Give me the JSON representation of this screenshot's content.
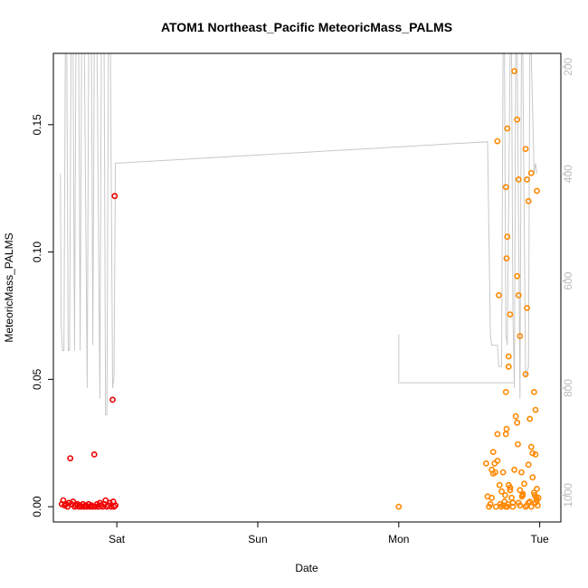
{
  "chart_data": {
    "type": "scatter",
    "title": "ATOM1 Northeast_Pacific MeteoricMass_PALMS",
    "xlabel": "Date",
    "ylabel": "MeteoricMass_PALMS",
    "x_ticks": [
      "Sat",
      "Sun",
      "Mon",
      "Tue"
    ],
    "y_ticks": [
      "0.00",
      "0.05",
      "0.10",
      "0.15"
    ],
    "y_right_ticks": [
      "200",
      "400",
      "600",
      "800",
      "1000"
    ],
    "xlim_days": [
      -0.45,
      3.15
    ],
    "ylim": [
      -0.006,
      0.178
    ],
    "y_right_lim": [
      1050,
      175
    ],
    "grid": false,
    "colors": {
      "series1": "#ee0000",
      "series2": "#ff8800",
      "pressure": "#c8c8c8",
      "axis": "#000000",
      "right_axis": "#bbbbbb"
    },
    "series": [
      {
        "color": "#ee0000",
        "points": [
          [
            -0.39,
            0.001
          ],
          [
            -0.38,
            0.0025
          ],
          [
            -0.37,
            0.0005
          ],
          [
            -0.36,
            0.001
          ],
          [
            -0.35,
            0.0
          ],
          [
            -0.34,
            0.0015
          ],
          [
            -0.33,
            0.019
          ],
          [
            -0.32,
            0.001
          ],
          [
            -0.31,
            0.002
          ],
          [
            -0.3,
            0.0
          ],
          [
            -0.29,
            0.0005
          ],
          [
            -0.28,
            0.001
          ],
          [
            -0.27,
            0.0
          ],
          [
            -0.26,
            0.0005
          ],
          [
            -0.25,
            0.0
          ],
          [
            -0.24,
            0.001
          ],
          [
            -0.23,
            0.0
          ],
          [
            -0.22,
            0.0005
          ],
          [
            -0.21,
            0.0
          ],
          [
            -0.2,
            0.001
          ],
          [
            -0.19,
            0.0
          ],
          [
            -0.18,
            0.0005
          ],
          [
            -0.17,
            0.0
          ],
          [
            -0.16,
            0.0205
          ],
          [
            -0.15,
            0.0
          ],
          [
            -0.14,
            0.001
          ],
          [
            -0.13,
            0.0
          ],
          [
            -0.12,
            0.0015
          ],
          [
            -0.11,
            0.0005
          ],
          [
            -0.1,
            0.0
          ],
          [
            -0.09,
            0.001
          ],
          [
            -0.08,
            0.0025
          ],
          [
            -0.07,
            0.0
          ],
          [
            -0.06,
            0.0005
          ],
          [
            -0.05,
            0.0015
          ],
          [
            -0.04,
            0.0
          ],
          [
            -0.03,
            0.042
          ],
          [
            -0.025,
            0.002
          ],
          [
            -0.02,
            0.0
          ],
          [
            -0.015,
            0.122
          ],
          [
            -0.01,
            0.0005
          ]
        ]
      },
      {
        "color": "#ff8800",
        "points": [
          [
            2.0,
            0.0
          ],
          [
            2.62,
            0.017
          ],
          [
            2.63,
            0.004
          ],
          [
            2.64,
            0.0
          ],
          [
            2.65,
            0.001
          ],
          [
            2.66,
            0.0035
          ],
          [
            2.67,
            0.013
          ],
          [
            2.68,
            0.017
          ],
          [
            2.685,
            0.0135
          ],
          [
            2.69,
            0.0
          ],
          [
            2.7,
            0.0285
          ],
          [
            2.71,
            0.083
          ],
          [
            2.715,
            0.0085
          ],
          [
            2.72,
            0.001
          ],
          [
            2.725,
            0.0
          ],
          [
            2.73,
            0.006
          ],
          [
            2.74,
            0.0005
          ],
          [
            2.75,
            0.002
          ],
          [
            2.755,
            0.0045
          ],
          [
            2.76,
            0.0
          ],
          [
            2.765,
            0.0305
          ],
          [
            2.77,
            0.0
          ],
          [
            2.775,
            0.001
          ],
          [
            2.78,
            0.0085
          ],
          [
            2.79,
            0.0065
          ],
          [
            2.8,
            0.0035
          ],
          [
            2.81,
            0.0
          ],
          [
            2.82,
            0.0145
          ],
          [
            2.83,
            0.0355
          ],
          [
            2.84,
            0.033
          ],
          [
            2.845,
            0.0245
          ],
          [
            2.85,
            0.0015
          ],
          [
            2.86,
            0.0005
          ],
          [
            2.87,
            0.0135
          ],
          [
            2.875,
            0.004
          ],
          [
            2.88,
            0.0045
          ],
          [
            2.89,
            0.009
          ],
          [
            2.9,
            0.0
          ],
          [
            2.91,
            0.0005
          ],
          [
            2.92,
            0.0015
          ],
          [
            2.93,
            0.002
          ],
          [
            2.94,
            0.0
          ],
          [
            2.95,
            0.0115
          ],
          [
            2.96,
            0.0055
          ],
          [
            2.965,
            0.0045
          ],
          [
            2.97,
            0.0015
          ],
          [
            2.975,
            0.0035
          ],
          [
            2.98,
            0.0025
          ],
          [
            2.985,
            0.0005
          ],
          [
            2.99,
            0.0035
          ],
          [
            2.66,
            0.0145
          ],
          [
            2.67,
            0.0215
          ],
          [
            2.7,
            0.018
          ],
          [
            2.74,
            0.0135
          ],
          [
            2.76,
            0.0285
          ],
          [
            2.79,
            0.0075
          ],
          [
            2.81,
            0.0015
          ],
          [
            2.86,
            0.0065
          ],
          [
            2.88,
            0.005
          ],
          [
            2.92,
            0.0165
          ],
          [
            2.94,
            0.0235
          ],
          [
            2.95,
            0.021
          ],
          [
            2.97,
            0.0205
          ],
          [
            2.98,
            0.007
          ],
          [
            2.7,
            0.1435
          ],
          [
            2.79,
            0.0755
          ],
          [
            2.82,
            0.171
          ],
          [
            2.84,
            0.152
          ],
          [
            2.85,
            0.083
          ],
          [
            2.86,
            0.067
          ],
          [
            2.765,
            0.0975
          ],
          [
            2.9,
            0.1405
          ],
          [
            2.91,
            0.078
          ],
          [
            2.92,
            0.12
          ],
          [
            2.94,
            0.131
          ],
          [
            2.96,
            0.045
          ],
          [
            2.97,
            0.038
          ],
          [
            2.98,
            0.124
          ],
          [
            2.77,
            0.106
          ],
          [
            2.78,
            0.059
          ],
          [
            2.76,
            0.1255
          ],
          [
            2.84,
            0.0905
          ],
          [
            2.85,
            0.1285
          ],
          [
            2.77,
            0.1485
          ],
          [
            2.91,
            0.1285
          ],
          [
            2.76,
            0.045
          ],
          [
            2.9,
            0.052
          ],
          [
            2.78,
            0.055
          ],
          [
            2.93,
            0.0345
          ]
        ]
      },
      {
        "color": "#c8c8c8",
        "axis": "right",
        "points": [
          [
            -0.4,
            400
          ],
          [
            -0.395,
            680
          ],
          [
            -0.385,
            730
          ],
          [
            -0.375,
            730
          ],
          [
            -0.365,
            100
          ],
          [
            -0.355,
            100
          ],
          [
            -0.345,
            730
          ],
          [
            -0.335,
            730
          ],
          [
            -0.325,
            100
          ],
          [
            -0.31,
            100
          ],
          [
            -0.3,
            730
          ],
          [
            -0.29,
            100
          ],
          [
            -0.27,
            100
          ],
          [
            -0.26,
            730
          ],
          [
            -0.25,
            100
          ],
          [
            -0.23,
            100
          ],
          [
            -0.21,
            800
          ],
          [
            -0.2,
            100
          ],
          [
            -0.18,
            100
          ],
          [
            -0.17,
            720
          ],
          [
            -0.16,
            100
          ],
          [
            -0.14,
            100
          ],
          [
            -0.12,
            820
          ],
          [
            -0.11,
            100
          ],
          [
            -0.09,
            100
          ],
          [
            -0.08,
            850
          ],
          [
            -0.07,
            850
          ],
          [
            -0.06,
            100
          ],
          [
            -0.045,
            100
          ],
          [
            -0.03,
            800
          ],
          [
            -0.02,
            780
          ],
          [
            -0.01,
            380
          ],
          [
            0.0,
            380
          ],
          [
            2.63,
            340
          ],
          [
            2.65,
            700
          ],
          [
            2.66,
            720
          ],
          [
            2.7,
            720
          ],
          [
            2.71,
            760
          ],
          [
            2.73,
            760
          ],
          [
            2.74,
            100
          ],
          [
            2.75,
            100
          ],
          [
            2.76,
            700
          ],
          [
            2.77,
            720
          ],
          [
            2.79,
            100
          ],
          [
            2.8,
            100
          ],
          [
            2.81,
            660
          ],
          [
            2.82,
            800
          ],
          [
            2.83,
            100
          ],
          [
            2.84,
            100
          ],
          [
            2.86,
            820
          ],
          [
            2.87,
            100
          ],
          [
            2.88,
            100
          ],
          [
            2.9,
            780
          ],
          [
            2.92,
            760
          ],
          [
            2.93,
            100
          ],
          [
            2.94,
            100
          ],
          [
            2.96,
            400
          ],
          [
            2.97,
            380
          ],
          [
            2.98,
            400
          ]
        ]
      }
    ],
    "pressure_extra": [
      [
        2.0,
        700
      ],
      [
        2.0,
        790
      ],
      [
        2.82,
        790
      ]
    ]
  }
}
